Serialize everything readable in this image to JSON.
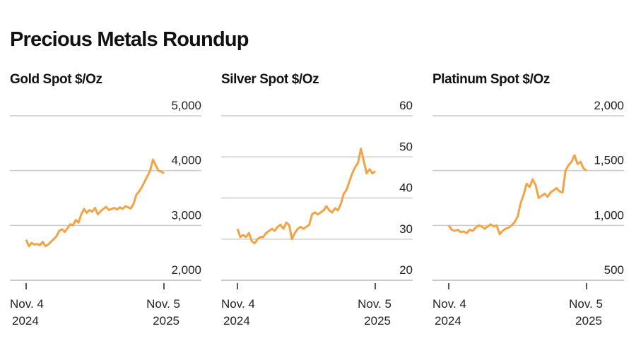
{
  "title": "Precious Metals Roundup",
  "line_color": "#F2A445",
  "chart_data": [
    {
      "type": "line",
      "title": "Gold Spot $/Oz",
      "ylim": [
        2000,
        5000
      ],
      "yticks": [
        5000,
        4000,
        3000,
        2000
      ],
      "ytick_labels": [
        "5,000",
        "4,000",
        "3,000",
        "2,000"
      ],
      "xtick_labels": [
        [
          "Nov. 4",
          "2024"
        ],
        [
          "Nov. 5",
          "2025"
        ]
      ],
      "values": [
        2740,
        2620,
        2680,
        2650,
        2660,
        2640,
        2700,
        2620,
        2650,
        2700,
        2750,
        2800,
        2900,
        2930,
        2880,
        2950,
        3020,
        3000,
        3100,
        3050,
        3200,
        3300,
        3230,
        3280,
        3250,
        3320,
        3200,
        3260,
        3300,
        3340,
        3280,
        3300,
        3320,
        3290,
        3330,
        3300,
        3350,
        3330,
        3310,
        3400,
        3560,
        3620,
        3700,
        3800,
        3900,
        4000,
        4200,
        4100,
        4000,
        3980,
        3950
      ]
    },
    {
      "type": "line",
      "title": "Silver Spot $/Oz",
      "ylim": [
        20,
        60
      ],
      "yticks": [
        60,
        50,
        40,
        30,
        20
      ],
      "ytick_labels": [
        "60",
        "50",
        "40",
        "30",
        "20"
      ],
      "xtick_labels": [
        [
          "Nov. 4",
          "2024"
        ],
        [
          "Nov. 5",
          "2025"
        ]
      ],
      "values": [
        32.5,
        30.5,
        31,
        30.5,
        31.5,
        29.5,
        29,
        30,
        30.5,
        30.5,
        31.5,
        32,
        32.5,
        32,
        33,
        33.5,
        32.5,
        34,
        33.5,
        30,
        31.5,
        32.5,
        33,
        32.5,
        33,
        33.5,
        36,
        36.5,
        36,
        36.5,
        37,
        38,
        37,
        36.5,
        37.5,
        37,
        38.5,
        41,
        42,
        44,
        46,
        47.5,
        48.5,
        52,
        49,
        46,
        47,
        46,
        46.5
      ]
    },
    {
      "type": "line",
      "title": "Platinum Spot $/Oz",
      "ylim": [
        500,
        2000
      ],
      "yticks": [
        2000,
        1500,
        1000,
        500
      ],
      "ytick_labels": [
        "2,000",
        "1,500",
        "1,000",
        "500"
      ],
      "xtick_labels": [
        [
          "Nov. 4",
          "2024"
        ],
        [
          "Nov. 5",
          "2025"
        ]
      ],
      "values": [
        1000,
        960,
        950,
        960,
        940,
        945,
        930,
        960,
        950,
        980,
        1000,
        990,
        970,
        990,
        1010,
        990,
        1000,
        920,
        950,
        970,
        980,
        1000,
        1030,
        1080,
        1200,
        1280,
        1380,
        1350,
        1420,
        1370,
        1250,
        1270,
        1290,
        1260,
        1300,
        1320,
        1340,
        1310,
        1300,
        1500,
        1550,
        1580,
        1640,
        1560,
        1580,
        1520,
        1500
      ]
    }
  ]
}
